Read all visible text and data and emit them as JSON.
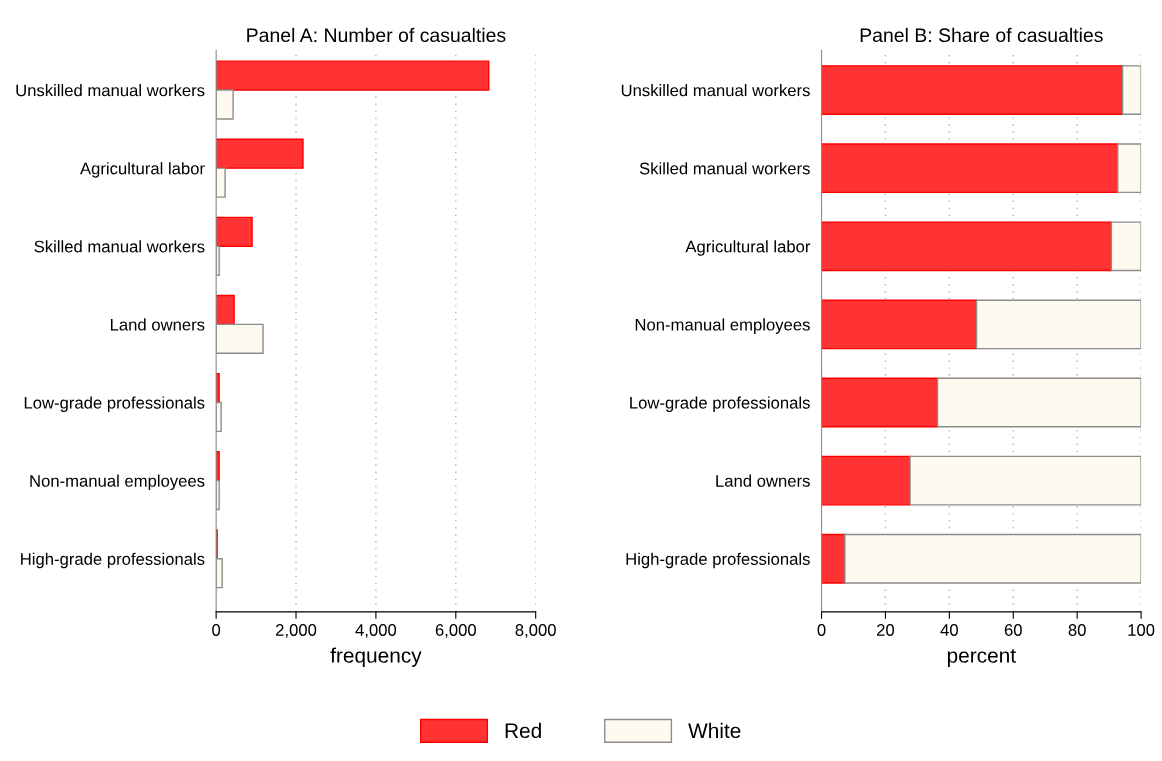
{
  "chart_data": [
    {
      "type": "bar",
      "orientation": "horizontal",
      "title": "Panel A: Number of casualties",
      "xlabel": "frequency",
      "categories": [
        "Unskilled manual workers",
        "Agricultural labor",
        "Skilled manual workers",
        "Land owners",
        "Low-grade professionals",
        "Non-manual employees",
        "High-grade professionals"
      ],
      "series": [
        {
          "name": "Red",
          "color": "#ff3333",
          "values": [
            6825,
            2175,
            900,
            450,
            75,
            75,
            25
          ]
        },
        {
          "name": "White",
          "color": "#fffaf0",
          "values": [
            425,
            225,
            75,
            1175,
            125,
            75,
            150
          ]
        }
      ],
      "xlim": [
        0,
        8000
      ],
      "xticks": [
        0,
        {
          "value": 2000,
          "label": "2,000"
        },
        {
          "value": 4000,
          "label": "4,000"
        },
        {
          "value": 6000,
          "label": "6,000"
        },
        {
          "value": 8000,
          "label": "8,000"
        }
      ],
      "grid": "x",
      "legend": "bottom"
    },
    {
      "type": "bar",
      "orientation": "horizontal",
      "stacked": true,
      "title": "Panel B: Share of casualties",
      "xlabel": "percent",
      "categories": [
        "Unskilled manual workers",
        "Skilled manual workers",
        "Agricultural labor",
        "Non-manual employees",
        "Low-grade professionals",
        "Land owners",
        "High-grade professionals"
      ],
      "series": [
        {
          "color": "#ff3333",
          "values": [
            94.2,
            92.7,
            90.7,
            48.5,
            36.3,
            27.7,
            7.3
          ]
        },
        {
          "color": "#fffaf0",
          "values": [
            5.8,
            7.3,
            9.3,
            51.5,
            63.7,
            72.3,
            92.7
          ]
        }
      ],
      "xlim": [
        0,
        100
      ],
      "xticks": [
        0,
        20,
        40,
        60,
        80,
        100
      ],
      "grid": "x"
    }
  ]
}
